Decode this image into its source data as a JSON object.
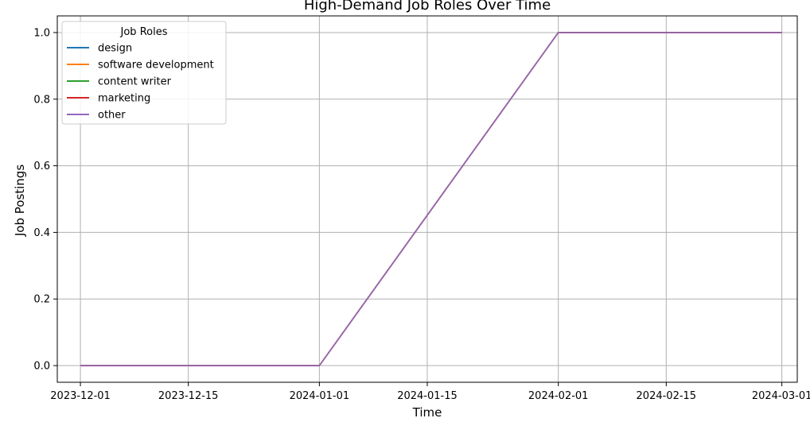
{
  "chart_data": {
    "type": "line",
    "title": "High-Demand Job Roles Over Time",
    "xlabel": "Time",
    "ylabel": "Job Postings",
    "x": [
      "2023-12-01",
      "2024-01-01",
      "2024-02-01",
      "2024-03-01"
    ],
    "x_ticks": [
      "2023-12-01",
      "2023-12-15",
      "2024-01-01",
      "2024-01-15",
      "2024-02-01",
      "2024-02-15",
      "2024-03-01"
    ],
    "y_ticks": [
      0.0,
      0.2,
      0.4,
      0.6,
      0.8,
      1.0
    ],
    "y_tick_labels": [
      "0.0",
      "0.2",
      "0.4",
      "0.6",
      "0.8",
      "1.0"
    ],
    "ylim": [
      -0.05,
      1.05
    ],
    "xlim": [
      "2023-11-28",
      "2024-03-03"
    ],
    "grid": true,
    "legend": {
      "title": "Job Roles",
      "placement": "top-left"
    },
    "series": [
      {
        "name": "design",
        "color": "#1f77b4",
        "values": [
          0,
          0,
          1,
          1
        ]
      },
      {
        "name": "software development",
        "color": "#ff7f0e",
        "values": [
          0,
          0,
          1,
          1
        ]
      },
      {
        "name": "content writer",
        "color": "#2ca02c",
        "values": [
          0,
          0,
          1,
          1
        ]
      },
      {
        "name": "marketing",
        "color": "#d62728",
        "values": [
          0,
          0,
          1,
          1
        ]
      },
      {
        "name": "other",
        "color": "#9467bd",
        "values": [
          0,
          0,
          1,
          1
        ]
      }
    ]
  }
}
